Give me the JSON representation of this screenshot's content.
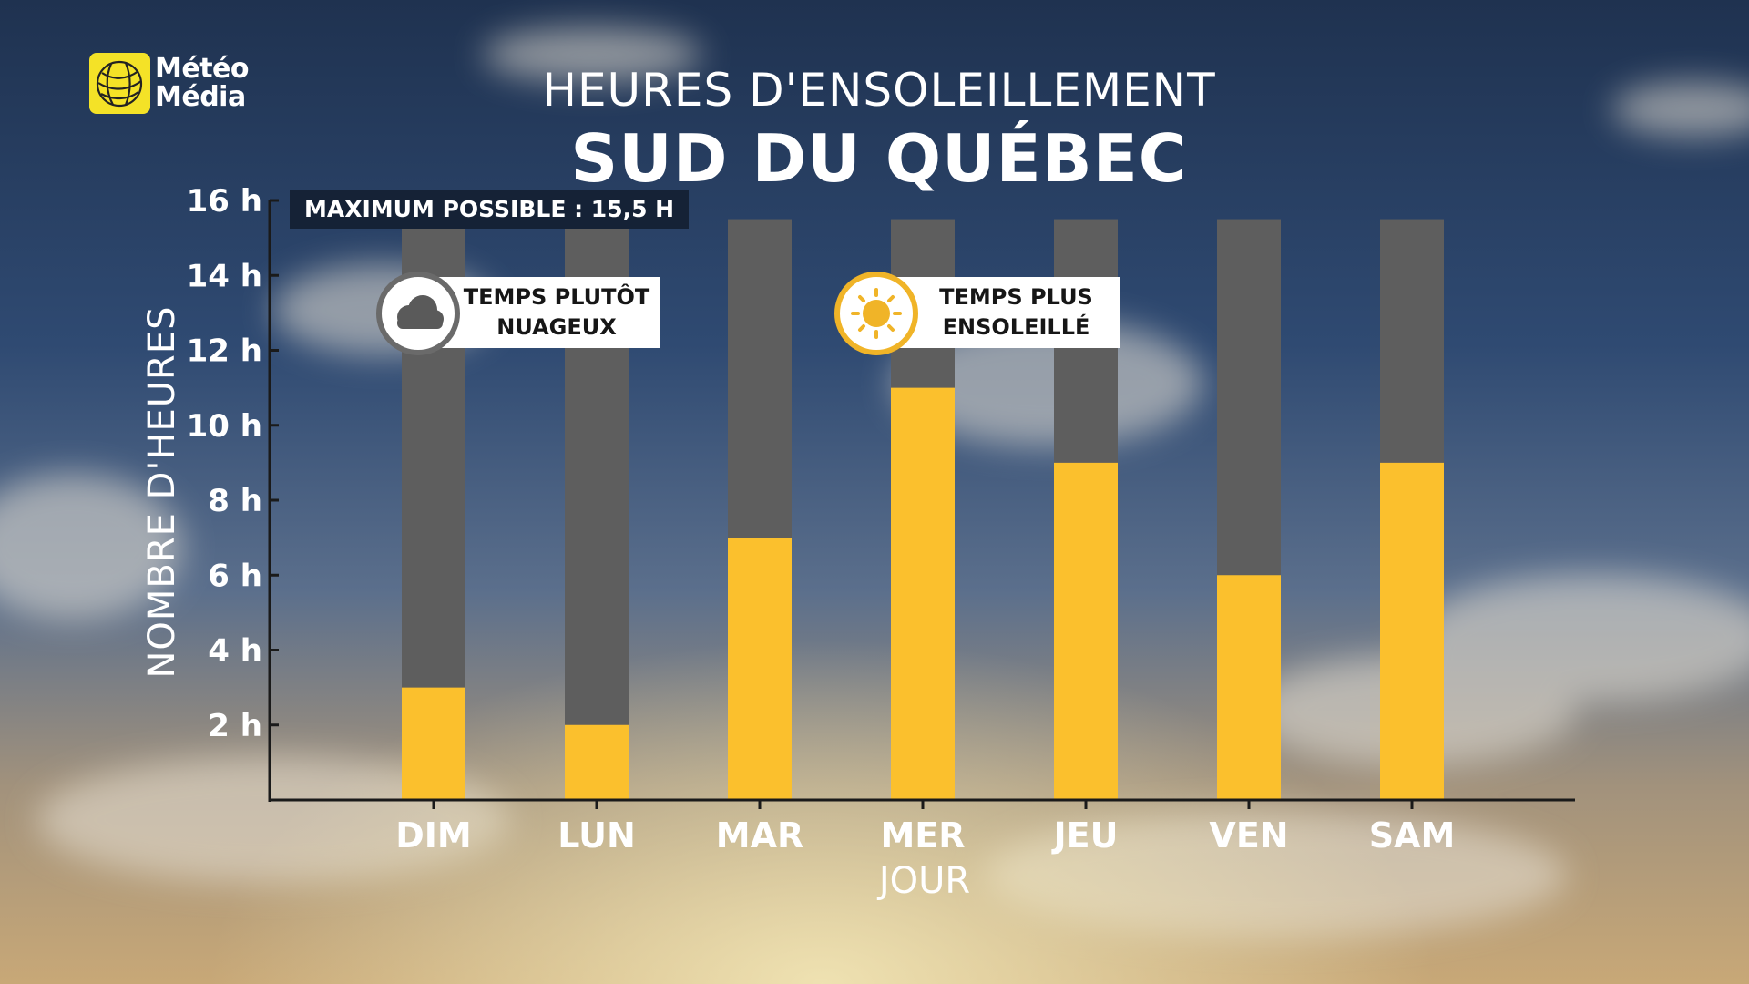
{
  "brand": {
    "line1": "Météo",
    "line2": "Média",
    "color": "#f4e227"
  },
  "header": {
    "title": "HEURES D'ENSOLEILLEMENT",
    "region": "SUD DU QUÉBEC"
  },
  "colors": {
    "sun": "#fbc02d",
    "remaining": "#5e5e5e",
    "axis": "#1a1a1a"
  },
  "annotations": {
    "cloudy": {
      "line1": "TEMPS PLUTÔT",
      "line2": "NUAGEUX",
      "icon": "cloud-icon"
    },
    "sunny": {
      "line1": "TEMPS PLUS",
      "line2": "ENSOLEILLÉ",
      "icon": "sun-icon"
    }
  },
  "chart_data": {
    "type": "bar",
    "title": "HEURES D'ENSOLEILLEMENT",
    "subtitle": "SUD DU QUÉBEC",
    "xlabel": "JOUR",
    "ylabel": "NOMBRE D'HEURES",
    "categories": [
      "DIM",
      "LUN",
      "MAR",
      "MER",
      "JEU",
      "VEN",
      "SAM"
    ],
    "series": [
      {
        "values": [
          3,
          2,
          7,
          11,
          9,
          6,
          9
        ]
      }
    ],
    "max_possible": 15.5,
    "max_label": "MAXIMUM POSSIBLE : 15,5 H",
    "ylim": [
      0,
      16
    ],
    "yticks": [
      2,
      4,
      6,
      8,
      10,
      12,
      14,
      16
    ],
    "ytick_labels": [
      "2 h",
      "4 h",
      "6 h",
      "8 h",
      "10 h",
      "12 h",
      "14 h",
      "16 h"
    ],
    "grid": false,
    "stacked": true
  }
}
